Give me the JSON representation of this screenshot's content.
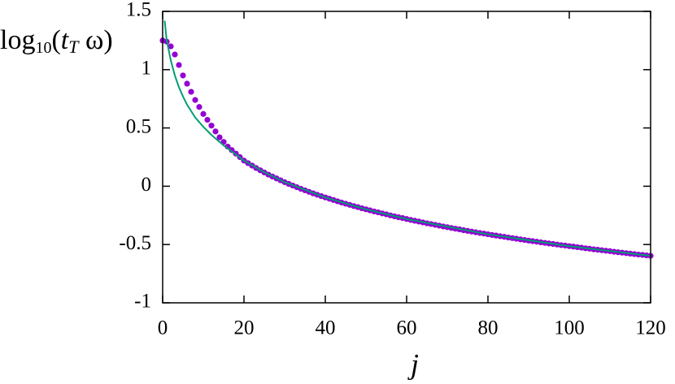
{
  "chart_data": {
    "type": "line",
    "xlabel": "j",
    "ylabel": [
      "log",
      "10",
      "(",
      "t",
      "T",
      " ω)"
    ],
    "xlim": [
      0,
      120
    ],
    "ylim": [
      -1,
      1.5
    ],
    "xticks": [
      0,
      20,
      40,
      60,
      80,
      100,
      120
    ],
    "yticks": [
      -1,
      -0.5,
      0,
      0.5,
      1,
      1.5
    ],
    "series": [
      {
        "style": "points",
        "color": "#9400d3",
        "x": [
          0,
          1,
          2,
          3,
          4,
          5,
          6,
          7,
          8,
          9,
          10,
          11,
          12,
          13,
          14,
          15,
          16,
          17,
          18,
          19,
          20,
          21,
          22,
          23,
          24,
          25,
          26,
          27,
          28,
          29,
          30,
          31,
          32,
          33,
          34,
          35,
          36,
          37,
          38,
          39,
          40,
          41,
          42,
          43,
          44,
          45,
          46,
          47,
          48,
          49,
          50,
          51,
          52,
          53,
          54,
          55,
          56,
          57,
          58,
          59,
          60,
          61,
          62,
          63,
          64,
          65,
          66,
          67,
          68,
          69,
          70,
          71,
          72,
          73,
          74,
          75,
          76,
          77,
          78,
          79,
          80,
          81,
          82,
          83,
          84,
          85,
          86,
          87,
          88,
          89,
          90,
          91,
          92,
          93,
          94,
          95,
          96,
          97,
          98,
          99,
          100,
          101,
          102,
          103,
          104,
          105,
          106,
          107,
          108,
          109,
          110,
          111,
          112,
          113,
          114,
          115,
          116,
          117,
          118,
          119,
          120
        ],
        "values": [
          1.25,
          1.24,
          1.2,
          1.13,
          1.04,
          0.95,
          0.88,
          0.81,
          0.74,
          0.68,
          0.62,
          0.57,
          0.52,
          0.47,
          0.42,
          0.38,
          0.34,
          0.31,
          0.28,
          0.25,
          0.22,
          0.198,
          0.177,
          0.156,
          0.137,
          0.118,
          0.1,
          0.083,
          0.067,
          0.051,
          0.035,
          0.02,
          0.006,
          -0.008,
          -0.022,
          -0.035,
          -0.048,
          -0.061,
          -0.073,
          -0.085,
          -0.096,
          -0.107,
          -0.118,
          -0.129,
          -0.14,
          -0.15,
          -0.16,
          -0.17,
          -0.179,
          -0.189,
          -0.198,
          -0.207,
          -0.216,
          -0.224,
          -0.233,
          -0.241,
          -0.25,
          -0.258,
          -0.266,
          -0.273,
          -0.281,
          -0.289,
          -0.296,
          -0.303,
          -0.31,
          -0.318,
          -0.324,
          -0.331,
          -0.338,
          -0.345,
          -0.351,
          -0.358,
          -0.364,
          -0.37,
          -0.377,
          -0.383,
          -0.389,
          -0.395,
          -0.401,
          -0.406,
          -0.412,
          -0.418,
          -0.423,
          -0.429,
          -0.434,
          -0.44,
          -0.445,
          -0.45,
          -0.456,
          -0.461,
          -0.466,
          -0.471,
          -0.476,
          -0.481,
          -0.486,
          -0.491,
          -0.495,
          -0.5,
          -0.505,
          -0.509,
          -0.514,
          -0.518,
          -0.523,
          -0.527,
          -0.532,
          -0.536,
          -0.541,
          -0.545,
          -0.549,
          -0.553,
          -0.557,
          -0.562,
          -0.566,
          -0.57,
          -0.574,
          -0.578,
          -0.582,
          -0.586,
          -0.589,
          -0.593,
          -0.597
        ]
      },
      {
        "style": "line",
        "color": "#009e73",
        "x": [
          0.5,
          1,
          2,
          3,
          4,
          5,
          6,
          8,
          10,
          12,
          15,
          20,
          25,
          30,
          40,
          50,
          60,
          80,
          100,
          120
        ],
        "values": [
          1.42,
          1.25,
          1.08,
          0.95,
          0.85,
          0.77,
          0.7,
          0.59,
          0.51,
          0.44,
          0.35,
          0.22,
          0.12,
          0.035,
          -0.096,
          -0.198,
          -0.281,
          -0.412,
          -0.514,
          -0.597
        ]
      }
    ]
  }
}
